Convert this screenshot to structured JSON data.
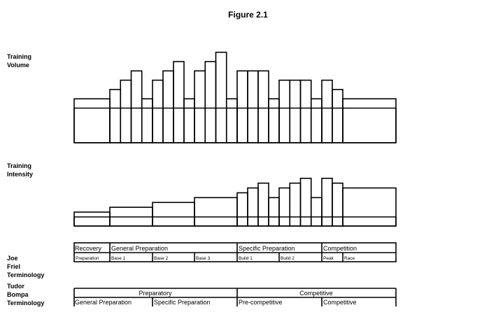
{
  "title": "Figure 2.1",
  "labels": {
    "volume": [
      "Training",
      "Volume"
    ],
    "intensity": [
      "Training",
      "Intensity"
    ],
    "friel": [
      "Joe",
      "Friel",
      "Terminology"
    ],
    "bompa": [
      "Tudor",
      "Bompa",
      "Terminology"
    ]
  },
  "periods": [
    "Preparation",
    "Base 1",
    "Base 2",
    "Base 3",
    "Build 1",
    "Build 2",
    "Peak",
    "Race"
  ],
  "training_volume_levels": [
    [
      1
    ],
    [
      2,
      3,
      4,
      1
    ],
    [
      3,
      4,
      5,
      1
    ],
    [
      4,
      5,
      6,
      1
    ],
    [
      4,
      4,
      4,
      1
    ],
    [
      3,
      3,
      3,
      1
    ],
    [
      3,
      2
    ],
    [
      1
    ]
  ],
  "training_intensity_levels": [
    [
      1
    ],
    [
      2
    ],
    [
      3
    ],
    [
      4
    ],
    [
      5,
      6,
      7,
      4
    ],
    [
      6,
      7,
      8,
      4
    ],
    [
      8,
      7
    ],
    [
      6
    ]
  ],
  "friel": {
    "phases": [
      "Recovery",
      "General Preparation",
      "Specific Preparation",
      "Competition"
    ],
    "periods": [
      "Preparation",
      "Base 1",
      "Base 2",
      "Base 3",
      "Build 1",
      "Build 2",
      "Peak",
      "Race"
    ]
  },
  "bompa": {
    "phases": [
      "Preparatory",
      "Competitive"
    ],
    "subphases": [
      "General Preparation",
      "Specific Preparation",
      "Pre-competitive",
      "Competitive"
    ]
  },
  "line_color": "#000000"
}
